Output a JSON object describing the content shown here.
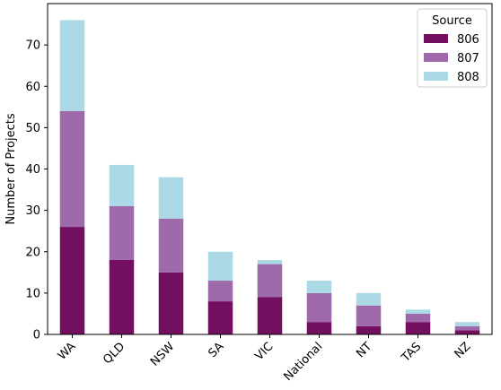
{
  "chart_data": {
    "type": "bar",
    "stacked": true,
    "categories": [
      "WA",
      "QLD",
      "NSW",
      "SA",
      "VIC",
      "National",
      "NT",
      "TAS",
      "NZ"
    ],
    "series": [
      {
        "name": "806",
        "values": [
          26,
          18,
          15,
          8,
          9,
          3,
          2,
          3,
          1
        ]
      },
      {
        "name": "807",
        "values": [
          28,
          13,
          13,
          5,
          8,
          7,
          5,
          2,
          1
        ]
      },
      {
        "name": "808",
        "values": [
          22,
          10,
          10,
          7,
          1,
          3,
          3,
          1,
          1
        ]
      }
    ],
    "title": "",
    "xlabel": "",
    "ylabel": "Number of Projects",
    "ylim": [
      0,
      80
    ],
    "yticks": [
      0,
      10,
      20,
      30,
      40,
      50,
      60,
      70
    ],
    "grid": false,
    "legend": {
      "title": "Source",
      "placement": "top-right"
    },
    "colors": [
      "#730f5f",
      "#9e6aaa",
      "#acd9e6"
    ]
  }
}
